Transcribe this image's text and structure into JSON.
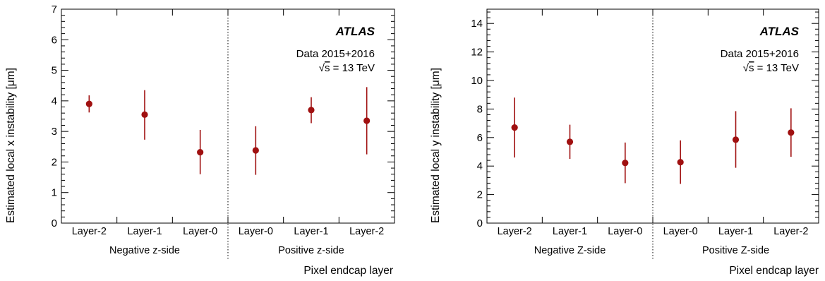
{
  "chart_data": [
    {
      "type": "scatter",
      "title": "",
      "xlabel": "Pixel endcap layer",
      "ylabel": "Estimated local x instability [μm]",
      "ylim": [
        0,
        7
      ],
      "yticks": [
        0,
        1,
        2,
        3,
        4,
        5,
        6,
        7
      ],
      "categories": [
        "Layer-2",
        "Layer-1",
        "Layer-0",
        "Layer-0",
        "Layer-1",
        "Layer-2"
      ],
      "groups": [
        "Negative z-side",
        "Positive z-side"
      ],
      "values": [
        3.9,
        3.55,
        2.32,
        2.38,
        3.7,
        3.35
      ],
      "err_low": [
        3.62,
        2.73,
        1.6,
        1.58,
        3.27,
        2.25
      ],
      "err_high": [
        4.18,
        4.35,
        3.05,
        3.17,
        4.12,
        4.45
      ],
      "annotations": {
        "experiment": "ATLAS",
        "dataset": "Data 2015+2016",
        "energy_prefix": "s",
        "energy_suffix": " = 13 TeV"
      },
      "marker_color": "#a01010",
      "grid": false
    },
    {
      "type": "scatter",
      "title": "",
      "xlabel": "Pixel endcap layer",
      "ylabel": "Estimated local y instability [μm]",
      "ylim": [
        0,
        15
      ],
      "yticks": [
        0,
        2,
        4,
        6,
        8,
        10,
        12,
        14
      ],
      "categories": [
        "Layer-2",
        "Layer-1",
        "Layer-0",
        "Layer-0",
        "Layer-1",
        "Layer-2"
      ],
      "groups": [
        "Negative Z-side",
        "Positive Z-side"
      ],
      "values": [
        6.7,
        5.7,
        4.22,
        4.27,
        5.85,
        6.35
      ],
      "err_low": [
        4.6,
        4.5,
        2.8,
        2.75,
        3.88,
        4.65
      ],
      "err_high": [
        8.8,
        6.9,
        5.65,
        5.8,
        7.85,
        8.05
      ],
      "annotations": {
        "experiment": "ATLAS",
        "dataset": "Data 2015+2016",
        "energy_prefix": "s",
        "energy_suffix": " = 13 TeV"
      },
      "marker_color": "#a01010",
      "grid": false
    }
  ]
}
